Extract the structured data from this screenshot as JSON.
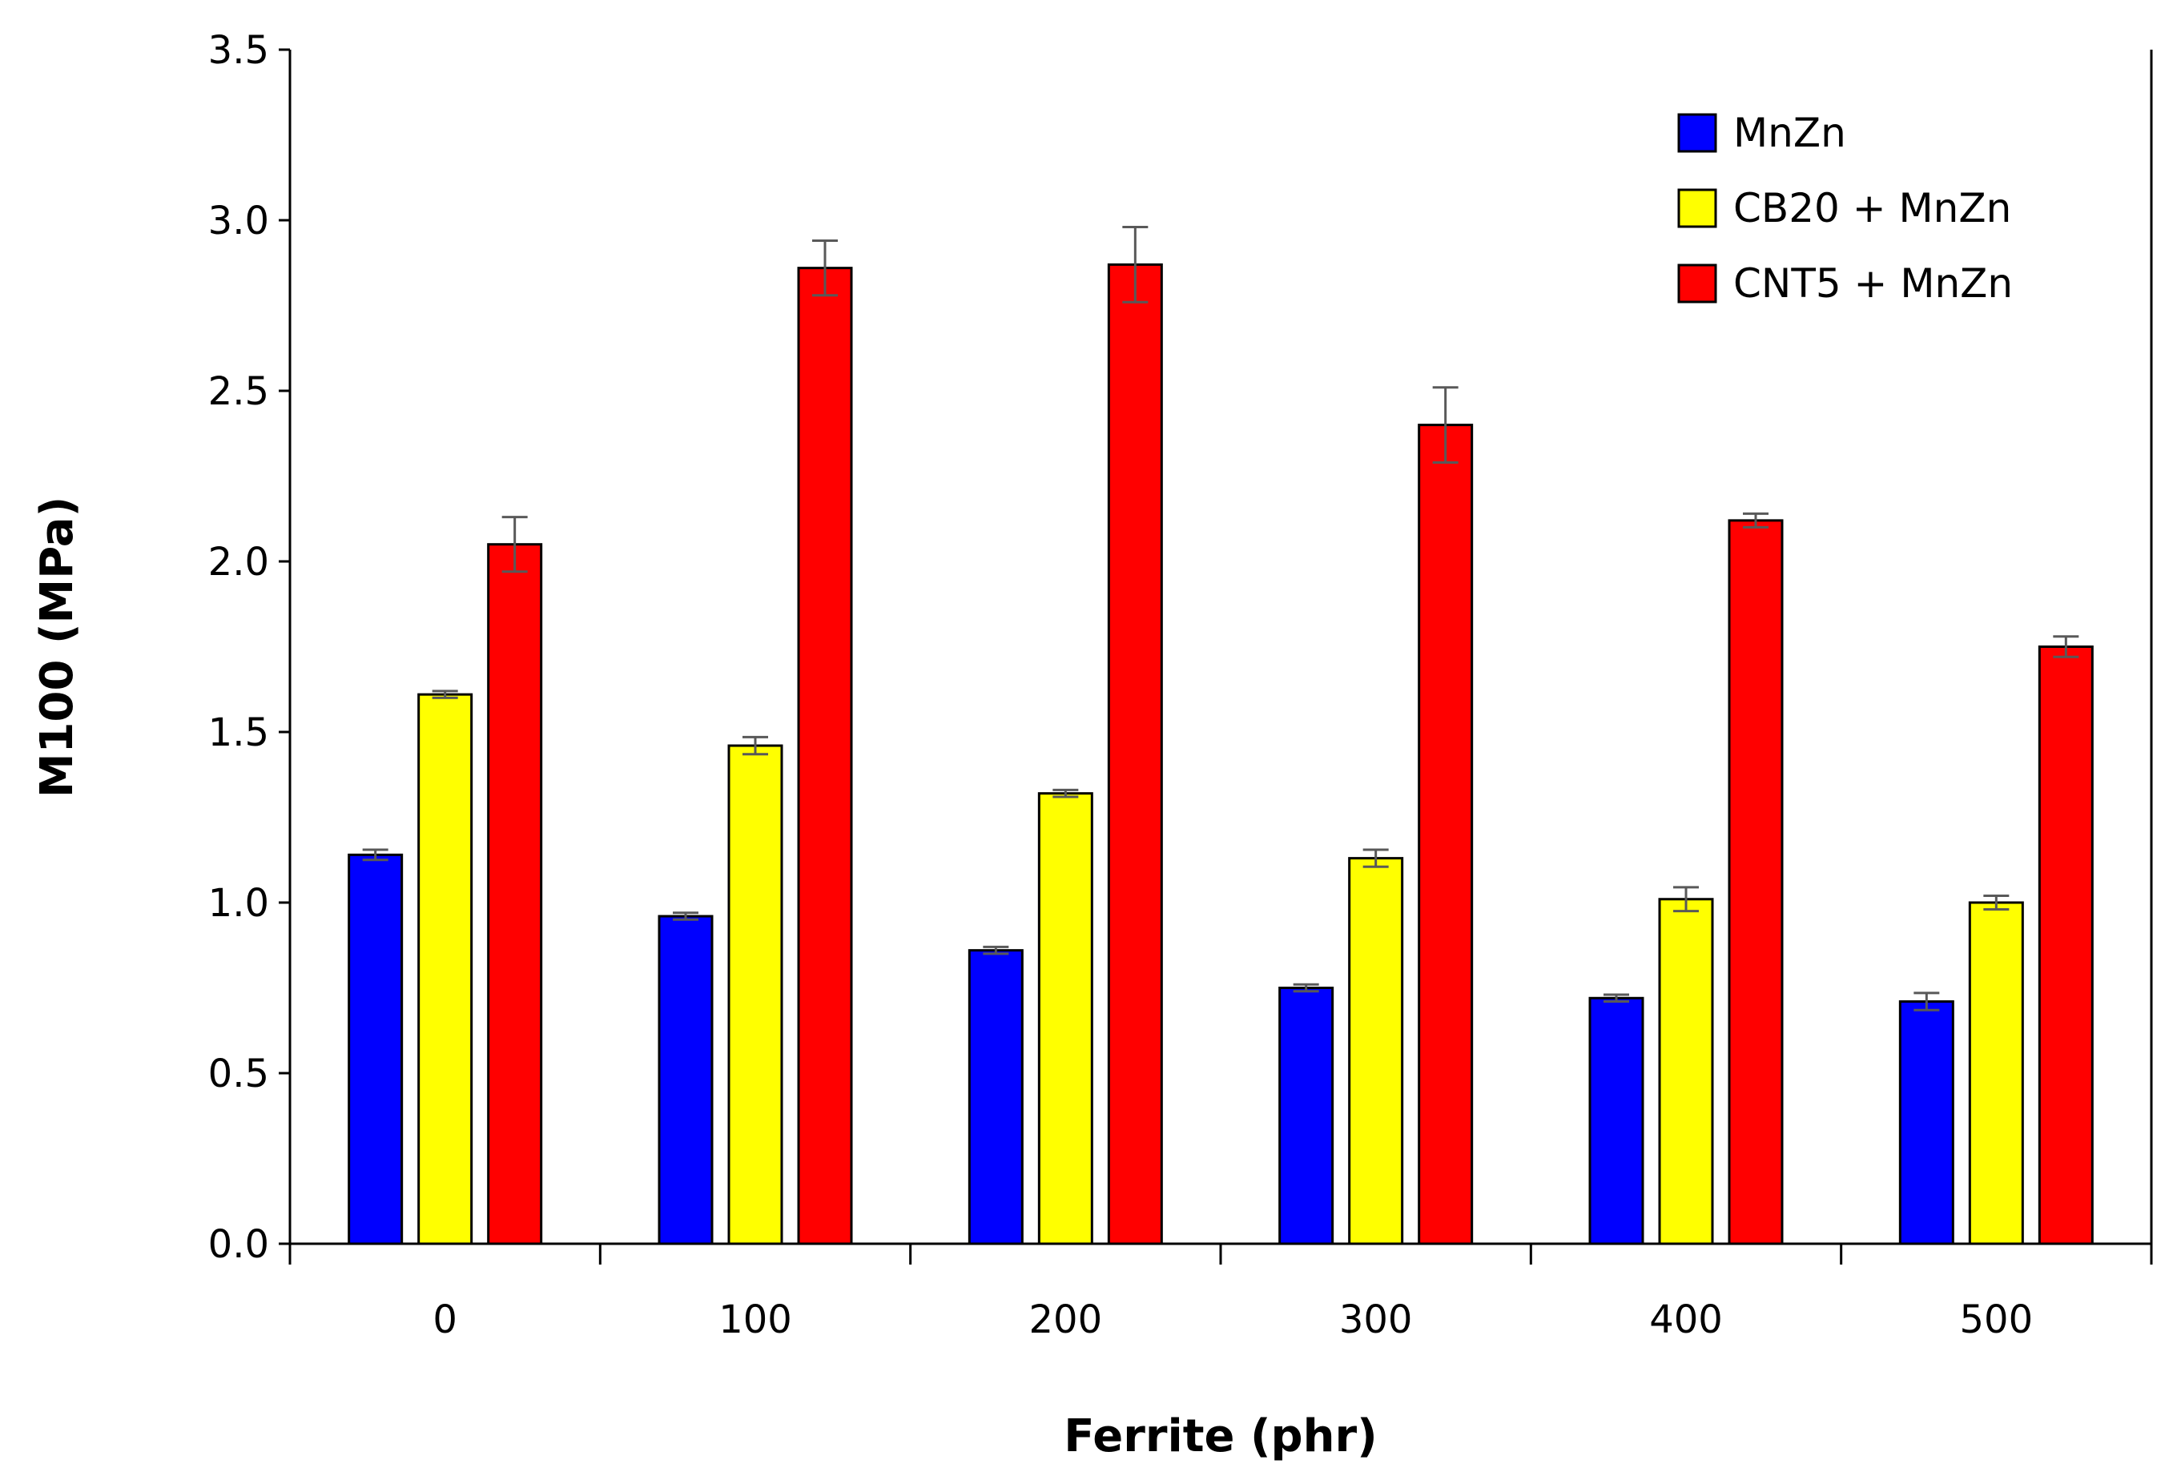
{
  "chart_data": {
    "type": "bar",
    "title": "",
    "xlabel": "Ferrite (phr)",
    "ylabel": "M100 (MPa)",
    "categories": [
      "0",
      "100",
      "200",
      "300",
      "400",
      "500"
    ],
    "ylim": [
      0,
      3.5
    ],
    "yticks": [
      0.0,
      0.5,
      1.0,
      1.5,
      2.0,
      2.5,
      3.0,
      3.5
    ],
    "ytick_labels": [
      "0.0",
      "0.5",
      "1.0",
      "1.5",
      "2.0",
      "2.5",
      "3.0",
      "3.5"
    ],
    "grid": false,
    "legend_position": "top-right",
    "series": [
      {
        "name": "MnZn",
        "color": "#0000ff",
        "values": [
          1.14,
          0.96,
          0.86,
          0.75,
          0.72,
          0.71
        ],
        "errors": [
          0.015,
          0.01,
          0.01,
          0.01,
          0.01,
          0.025
        ]
      },
      {
        "name": "CB20 + MnZn",
        "color": "#ffff00",
        "values": [
          1.61,
          1.46,
          1.32,
          1.13,
          1.01,
          1.0
        ],
        "errors": [
          0.01,
          0.025,
          0.01,
          0.025,
          0.035,
          0.02
        ]
      },
      {
        "name": "CNT5 + MnZn",
        "color": "#ff0000",
        "values": [
          2.05,
          2.86,
          2.87,
          2.4,
          2.12,
          1.75
        ],
        "errors": [
          0.08,
          0.08,
          0.11,
          0.11,
          0.02,
          0.03
        ]
      }
    ]
  }
}
